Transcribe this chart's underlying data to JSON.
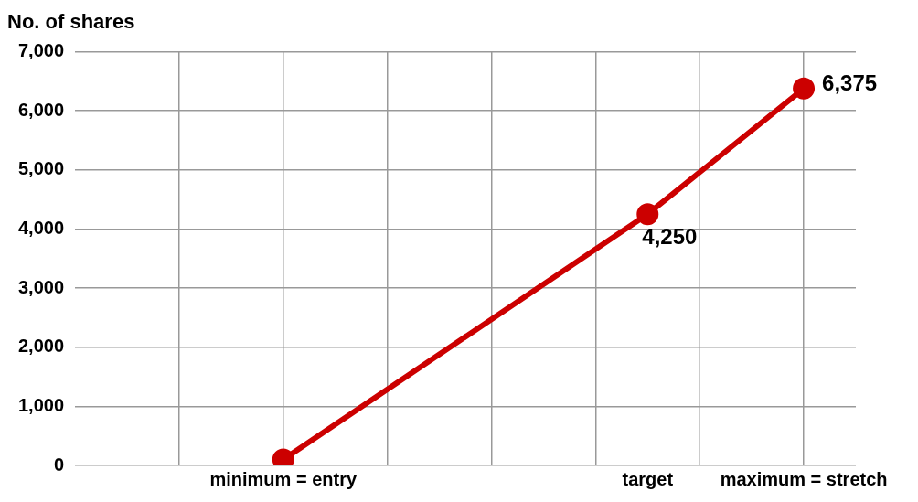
{
  "chart_data": {
    "type": "line",
    "ylabel": "No. of shares",
    "categories": [
      null,
      null,
      null,
      null,
      "minimum = entry",
      null,
      null,
      null,
      null,
      null,
      null,
      "target",
      null,
      null,
      "maximum = stretch",
      null
    ],
    "series": [
      {
        "color": "#cc0000",
        "values": [
          null,
          null,
          null,
          null,
          100,
          null,
          null,
          null,
          null,
          null,
          null,
          4250,
          null,
          null,
          6375,
          null
        ],
        "value_labels": [
          null,
          null,
          null,
          null,
          null,
          null,
          null,
          null,
          null,
          null,
          null,
          "4,250",
          null,
          null,
          "6,375",
          null
        ]
      }
    ],
    "ylim": [
      0,
      7000
    ],
    "yticks": [
      {
        "value": 0,
        "label": "0"
      },
      {
        "value": 1000,
        "label": "1,000"
      },
      {
        "value": 2000,
        "label": "2,000"
      },
      {
        "value": 3000,
        "label": "3,000"
      },
      {
        "value": 4000,
        "label": "4,000"
      },
      {
        "value": 5000,
        "label": "5,000"
      },
      {
        "value": 6000,
        "label": "6,000"
      },
      {
        "value": 7000,
        "label": "7,000"
      }
    ],
    "grid": true,
    "marker": "circle",
    "line_style": "solid",
    "legend": false
  }
}
